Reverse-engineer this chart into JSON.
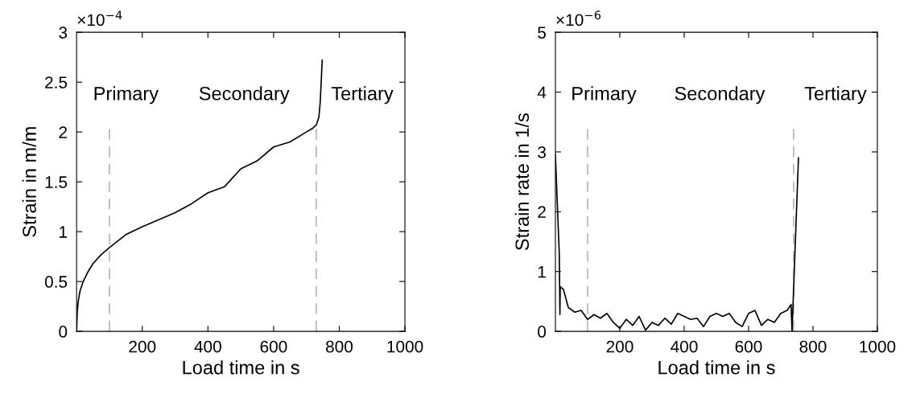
{
  "chart_data": [
    {
      "type": "line",
      "xlabel": "Load time in s",
      "ylabel": "Strain in m/m",
      "xlim": [
        0,
        1000
      ],
      "xticks": [
        200,
        400,
        600,
        800,
        1000
      ],
      "ylim": [
        0,
        3
      ],
      "yticks": [
        0,
        0.5,
        1,
        1.5,
        2,
        2.5,
        3
      ],
      "annotations": [
        "×10$^{−4}$",
        "Primary",
        "Secondary",
        "Tertiary"
      ],
      "ref_lines": [
        {
          "axis": "x",
          "value": 100,
          "color": "#b4b4b4",
          "line_style": "dashed"
        },
        {
          "axis": "x",
          "value": 730,
          "color": "#b4b4b4",
          "line_style": "dashed"
        }
      ],
      "grid": false,
      "legend": false,
      "series": [
        {
          "color": "#000000",
          "x": [
            0,
            2,
            5,
            10,
            20,
            35,
            50,
            75,
            100,
            150,
            200,
            250,
            300,
            350,
            400,
            450,
            500,
            550,
            600,
            650,
            700,
            720,
            730,
            738,
            742,
            745,
            748
          ],
          "values": [
            0,
            0.2,
            0.3,
            0.4,
            0.5,
            0.6,
            0.68,
            0.77,
            0.84,
            0.97,
            1.05,
            1.12,
            1.19,
            1.28,
            1.39,
            1.45,
            1.63,
            1.71,
            1.85,
            1.9,
            2.0,
            2.04,
            2.07,
            2.15,
            2.3,
            2.5,
            2.72
          ]
        }
      ]
    },
    {
      "type": "line",
      "xlabel": "Load time in s",
      "ylabel": "Strain rate in 1/s",
      "xlim": [
        0,
        1000
      ],
      "xticks": [
        200,
        400,
        600,
        800,
        1000
      ],
      "ylim": [
        0,
        5
      ],
      "yticks": [
        0,
        1,
        2,
        3,
        4,
        5
      ],
      "annotations": [
        "×10$^{−6}$",
        "Primary",
        "Secondary",
        "Tertiary"
      ],
      "ref_lines": [
        {
          "axis": "x",
          "value": 100,
          "color": "#b4b4b4",
          "line_style": "dashed"
        },
        {
          "axis": "x",
          "value": 740,
          "color": "#b4b4b4",
          "line_style": "dashed"
        }
      ],
      "grid": false,
      "legend": false,
      "series": [
        {
          "color": "#000000",
          "x": [
            0,
            12,
            14,
            15,
            25,
            40,
            60,
            80,
            100,
            120,
            140,
            160,
            180,
            200,
            220,
            240,
            260,
            280,
            300,
            320,
            340,
            360,
            380,
            400,
            420,
            440,
            460,
            480,
            500,
            520,
            540,
            560,
            580,
            600,
            620,
            640,
            660,
            680,
            700,
            720,
            732,
            735,
            755
          ],
          "values": [
            2.95,
            1.3,
            0.28,
            0.75,
            0.7,
            0.4,
            0.32,
            0.35,
            0.2,
            0.28,
            0.22,
            0.3,
            0.15,
            0.05,
            0.2,
            0.1,
            0.25,
            0.02,
            0.15,
            0.1,
            0.22,
            0.12,
            0.3,
            0.25,
            0.2,
            0.22,
            0.08,
            0.25,
            0.3,
            0.25,
            0.3,
            0.15,
            0.08,
            0.3,
            0.35,
            0.1,
            0.2,
            0.15,
            0.3,
            0.35,
            0.45,
            0,
            2.9
          ]
        }
      ]
    }
  ]
}
